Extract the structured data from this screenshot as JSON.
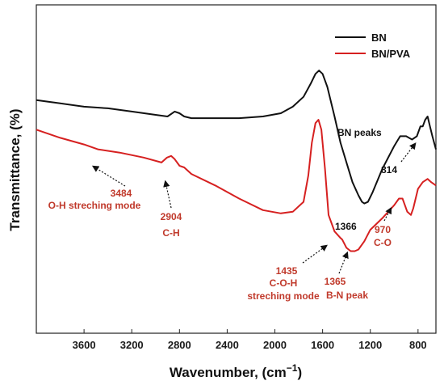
{
  "chart_data": {
    "type": "line",
    "xlabel": "Wavenumber, (cm",
    "xlabel_sup": "−1",
    "xlabel_close": ")",
    "ylabel": "Transmittance, (%)",
    "xlim": [
      4000,
      650
    ],
    "ylim": [
      0,
      100
    ],
    "x_reversed": true,
    "grid": false,
    "legend_position": "top-right",
    "xticks": [
      3600,
      3200,
      2800,
      2400,
      2000,
      1600,
      1200,
      800
    ],
    "xtick_labels": [
      "3600",
      "3200",
      "2800",
      "2400",
      "2000",
      "1600",
      "1200",
      "800"
    ],
    "series": [
      {
        "name": "BN",
        "color": "#111111",
        "points": [
          [
            4000,
            71
          ],
          [
            3800,
            70
          ],
          [
            3600,
            69
          ],
          [
            3400,
            68.5
          ],
          [
            3200,
            67.5
          ],
          [
            3000,
            66.5
          ],
          [
            2900,
            66
          ],
          [
            2840,
            67.5
          ],
          [
            2800,
            67
          ],
          [
            2760,
            66
          ],
          [
            2700,
            65.5
          ],
          [
            2500,
            65.5
          ],
          [
            2300,
            65.5
          ],
          [
            2100,
            66
          ],
          [
            1950,
            67
          ],
          [
            1850,
            69
          ],
          [
            1760,
            72
          ],
          [
            1700,
            76
          ],
          [
            1660,
            79
          ],
          [
            1630,
            80
          ],
          [
            1600,
            79
          ],
          [
            1560,
            75
          ],
          [
            1500,
            66
          ],
          [
            1450,
            58
          ],
          [
            1400,
            52
          ],
          [
            1350,
            46
          ],
          [
            1300,
            42
          ],
          [
            1270,
            40
          ],
          [
            1250,
            39.5
          ],
          [
            1220,
            40
          ],
          [
            1180,
            43
          ],
          [
            1100,
            50
          ],
          [
            1000,
            57
          ],
          [
            950,
            60
          ],
          [
            900,
            60
          ],
          [
            850,
            59
          ],
          [
            810,
            60
          ],
          [
            780,
            63
          ],
          [
            760,
            63
          ],
          [
            740,
            65
          ],
          [
            720,
            66
          ],
          [
            700,
            63
          ],
          [
            680,
            60
          ],
          [
            650,
            56
          ]
        ]
      },
      {
        "name": "BN/PVA",
        "color": "#d62020",
        "points": [
          [
            4000,
            62
          ],
          [
            3800,
            59.5
          ],
          [
            3600,
            57.5
          ],
          [
            3484,
            56
          ],
          [
            3300,
            55
          ],
          [
            3100,
            53.5
          ],
          [
            2950,
            52
          ],
          [
            2904,
            53.5
          ],
          [
            2870,
            54
          ],
          [
            2840,
            53
          ],
          [
            2800,
            51
          ],
          [
            2760,
            50.5
          ],
          [
            2700,
            48.5
          ],
          [
            2500,
            45
          ],
          [
            2300,
            41
          ],
          [
            2100,
            37.5
          ],
          [
            1950,
            36.5
          ],
          [
            1850,
            37
          ],
          [
            1760,
            40
          ],
          [
            1720,
            48
          ],
          [
            1690,
            58
          ],
          [
            1660,
            64
          ],
          [
            1635,
            65
          ],
          [
            1610,
            62
          ],
          [
            1580,
            50
          ],
          [
            1550,
            36
          ],
          [
            1500,
            31
          ],
          [
            1450,
            29
          ],
          [
            1435,
            28.5
          ],
          [
            1400,
            26
          ],
          [
            1365,
            25
          ],
          [
            1330,
            25
          ],
          [
            1300,
            25.5
          ],
          [
            1250,
            28
          ],
          [
            1200,
            31.5
          ],
          [
            1100,
            35
          ],
          [
            1000,
            39
          ],
          [
            960,
            41
          ],
          [
            930,
            41
          ],
          [
            890,
            37
          ],
          [
            860,
            36
          ],
          [
            840,
            38
          ],
          [
            800,
            44
          ],
          [
            760,
            46
          ],
          [
            720,
            47
          ],
          [
            690,
            46
          ],
          [
            650,
            45
          ]
        ]
      }
    ],
    "annotations": [
      {
        "text": "BN peaks",
        "color": "#111111"
      },
      {
        "text": "814",
        "color": "#111111"
      },
      {
        "text": "1366",
        "color": "#111111"
      },
      {
        "text": "3484",
        "color": "#c0392b"
      },
      {
        "text": "O-H streching mode",
        "color": "#c0392b"
      },
      {
        "text": "2904",
        "color": "#c0392b"
      },
      {
        "text": "C-H",
        "color": "#c0392b"
      },
      {
        "text": "1435",
        "color": "#c0392b"
      },
      {
        "text": "C-O-H",
        "color": "#c0392b"
      },
      {
        "text": "streching mode",
        "color": "#c0392b"
      },
      {
        "text": "1365",
        "color": "#c0392b"
      },
      {
        "text": "B-N peak",
        "color": "#c0392b"
      },
      {
        "text": "970",
        "color": "#c0392b"
      },
      {
        "text": "C-O",
        "color": "#c0392b"
      }
    ]
  }
}
